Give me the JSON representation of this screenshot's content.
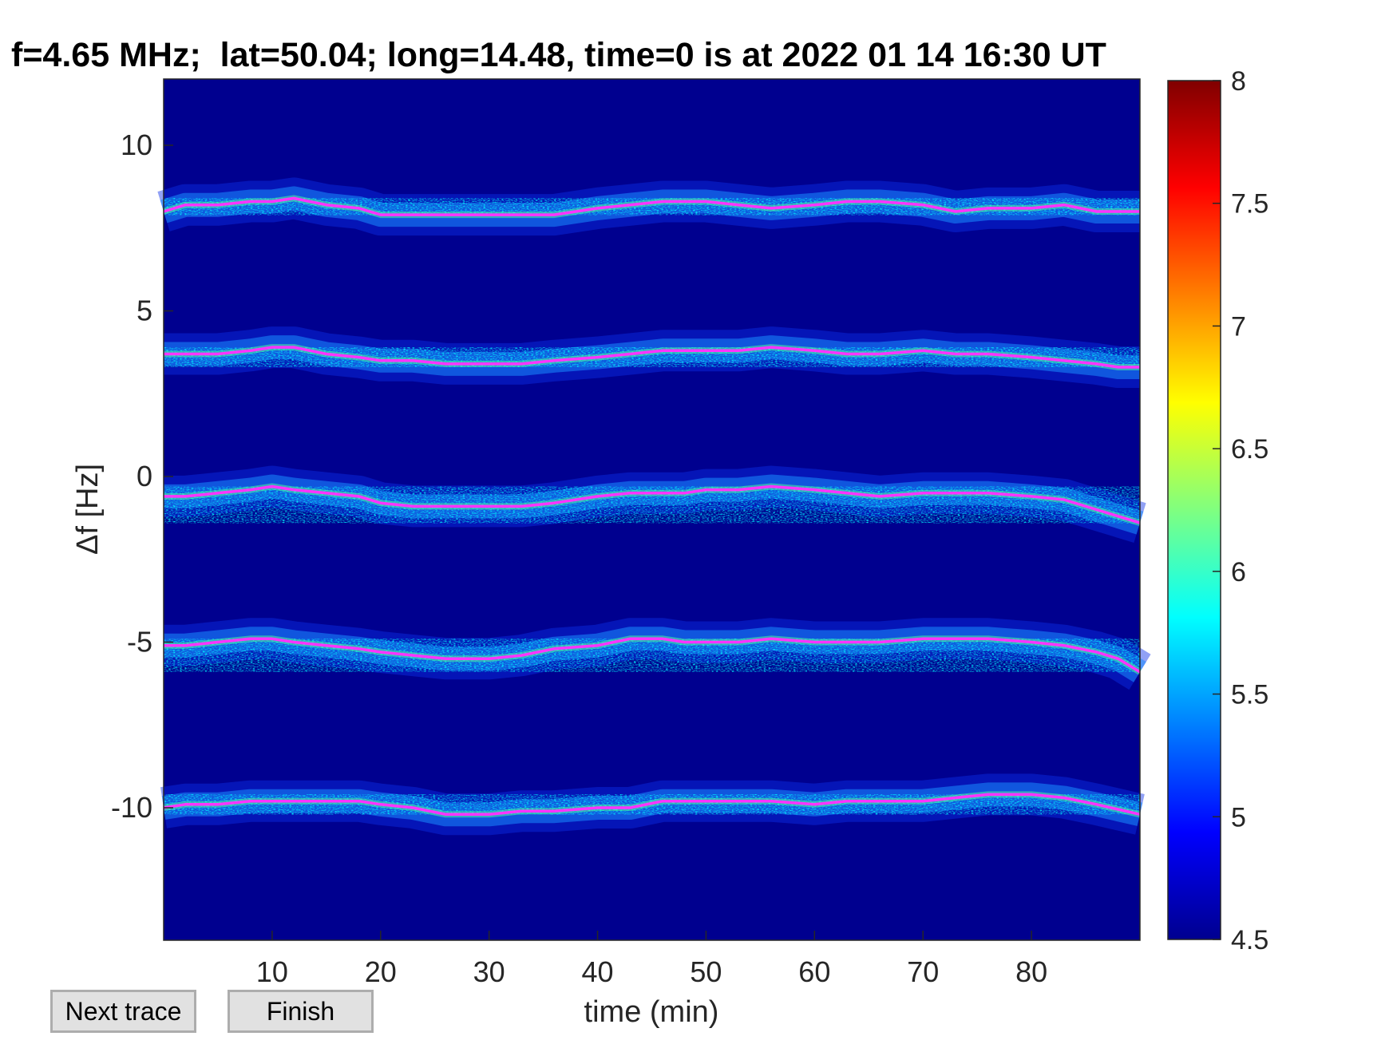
{
  "chart_data": {
    "type": "heatmap",
    "title": "f=4.65 MHz;  lat=50.04; long=14.48, time=0 is at 2022 01 14 16:30 UT",
    "xlabel": "time (min)",
    "ylabel": "Δf [Hz]",
    "xlim": [
      0,
      90
    ],
    "ylim": [
      -14,
      12
    ],
    "xticks": [
      10,
      20,
      30,
      40,
      50,
      60,
      70,
      80
    ],
    "yticks": [
      10,
      5,
      0,
      -5,
      -10
    ],
    "colorbar": {
      "range": [
        4.5,
        8
      ],
      "colormap": "jet",
      "ticks": [
        "8",
        "7.5",
        "7",
        "6.5",
        "6",
        "5.5",
        "5",
        "4.5"
      ]
    },
    "background_color": "#00008f",
    "trace_color": "#ff33ff",
    "traces": [
      {
        "x": [
          0,
          2,
          5,
          8,
          10,
          12,
          15,
          18,
          20,
          23,
          26,
          30,
          33,
          36,
          40,
          43,
          46,
          48,
          50,
          53,
          56,
          60,
          63,
          66,
          70,
          73,
          76,
          80,
          83,
          86,
          90
        ],
        "y": [
          8.0,
          8.2,
          8.2,
          8.3,
          8.3,
          8.4,
          8.2,
          8.1,
          7.9,
          7.9,
          7.9,
          7.9,
          7.9,
          7.9,
          8.1,
          8.2,
          8.3,
          8.3,
          8.3,
          8.2,
          8.1,
          8.2,
          8.3,
          8.3,
          8.2,
          8.0,
          8.1,
          8.1,
          8.2,
          8.0,
          8.0
        ]
      },
      {
        "x": [
          0,
          2,
          5,
          8,
          10,
          12,
          15,
          18,
          20,
          23,
          26,
          30,
          33,
          36,
          40,
          43,
          46,
          48,
          50,
          53,
          56,
          60,
          63,
          66,
          70,
          73,
          76,
          80,
          83,
          86,
          88,
          90
        ],
        "y": [
          3.7,
          3.7,
          3.7,
          3.8,
          3.9,
          3.9,
          3.7,
          3.6,
          3.5,
          3.5,
          3.4,
          3.4,
          3.4,
          3.5,
          3.6,
          3.7,
          3.8,
          3.8,
          3.8,
          3.8,
          3.9,
          3.8,
          3.7,
          3.7,
          3.8,
          3.7,
          3.7,
          3.6,
          3.5,
          3.4,
          3.3,
          3.3
        ]
      },
      {
        "x": [
          0,
          2,
          5,
          8,
          10,
          12,
          15,
          18,
          20,
          23,
          26,
          30,
          33,
          36,
          40,
          43,
          46,
          48,
          50,
          53,
          56,
          60,
          63,
          66,
          70,
          73,
          76,
          80,
          83,
          86,
          88,
          90
        ],
        "y": [
          -0.6,
          -0.6,
          -0.5,
          -0.4,
          -0.3,
          -0.4,
          -0.5,
          -0.6,
          -0.8,
          -0.9,
          -0.9,
          -0.9,
          -0.9,
          -0.8,
          -0.6,
          -0.5,
          -0.5,
          -0.5,
          -0.4,
          -0.4,
          -0.3,
          -0.4,
          -0.5,
          -0.6,
          -0.5,
          -0.5,
          -0.5,
          -0.6,
          -0.7,
          -1.0,
          -1.2,
          -1.4
        ]
      },
      {
        "x": [
          0,
          2,
          5,
          8,
          10,
          12,
          15,
          18,
          20,
          23,
          26,
          30,
          33,
          36,
          40,
          43,
          46,
          48,
          50,
          53,
          56,
          60,
          63,
          66,
          70,
          73,
          76,
          80,
          83,
          86,
          88,
          90
        ],
        "y": [
          -5.1,
          -5.1,
          -5.0,
          -4.9,
          -4.9,
          -5.0,
          -5.1,
          -5.2,
          -5.3,
          -5.4,
          -5.5,
          -5.5,
          -5.4,
          -5.2,
          -5.1,
          -4.9,
          -4.9,
          -5.0,
          -5.0,
          -5.0,
          -4.9,
          -5.0,
          -5.0,
          -5.0,
          -4.9,
          -4.9,
          -4.9,
          -5.0,
          -5.1,
          -5.3,
          -5.5,
          -5.9
        ]
      },
      {
        "x": [
          0,
          2,
          5,
          8,
          10,
          12,
          15,
          18,
          20,
          23,
          26,
          30,
          33,
          36,
          40,
          43,
          46,
          48,
          50,
          53,
          56,
          60,
          63,
          66,
          70,
          73,
          76,
          80,
          83,
          86,
          90
        ],
        "y": [
          -10.0,
          -9.9,
          -9.9,
          -9.8,
          -9.8,
          -9.8,
          -9.8,
          -9.8,
          -9.9,
          -10.0,
          -10.2,
          -10.2,
          -10.1,
          -10.1,
          -10.0,
          -10.0,
          -9.8,
          -9.8,
          -9.8,
          -9.8,
          -9.8,
          -9.9,
          -9.8,
          -9.8,
          -9.8,
          -9.7,
          -9.6,
          -9.6,
          -9.7,
          -9.9,
          -10.2
        ]
      }
    ],
    "grid": false,
    "legend": "none"
  },
  "buttons": {
    "next": "Next trace",
    "finish": "Finish"
  }
}
